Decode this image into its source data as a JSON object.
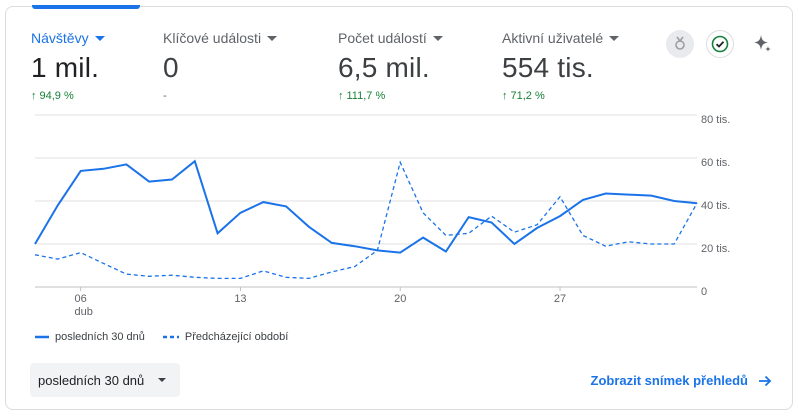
{
  "metrics": [
    {
      "label": "Návštěvy",
      "value": "1 mil.",
      "change": "94,9 %",
      "trend": "up"
    },
    {
      "label": "Klíčové události",
      "value": "0",
      "change": "-",
      "trend": "none"
    },
    {
      "label": "Počet událostí",
      "value": "6,5 mil.",
      "change": "111,7 %",
      "trend": "up"
    },
    {
      "label": "Aktivní uživatelé",
      "value": "554 tis.",
      "change": "71,2 %",
      "trend": "up"
    }
  ],
  "icons": {
    "insights": "insights-badge-icon",
    "check": "check-circle-icon",
    "sparkle": "sparkle-icon"
  },
  "colors": {
    "accent": "#1a73e8",
    "positive": "#188038",
    "grid": "#e0e0e0"
  },
  "legend": {
    "current": "posledních 30 dnů",
    "previous": "Předcházející období"
  },
  "date_range": {
    "selected": "posledních 30 dnů"
  },
  "footer": {
    "link": "Zobrazit snímek přehledů"
  },
  "chart_data": {
    "type": "line",
    "y_ticks": [
      "80 tis.",
      "60 tis.",
      "40 tis.",
      "20 tis.",
      "0"
    ],
    "ylim": [
      0,
      80000
    ],
    "x_ticks": [
      {
        "index": 2,
        "label": "06",
        "sub": "dub"
      },
      {
        "index": 9,
        "label": "13"
      },
      {
        "index": 16,
        "label": "20"
      },
      {
        "index": 23,
        "label": "27"
      }
    ],
    "series": [
      {
        "name": "posledních 30 dnů",
        "style": "solid",
        "values": [
          20000,
          38000,
          54000,
          55000,
          57000,
          49000,
          50000,
          58500,
          25000,
          34500,
          39500,
          37500,
          28000,
          20500,
          19000,
          17000,
          16000,
          23000,
          16500,
          32500,
          30000,
          20000,
          27500,
          33000,
          40500,
          43500,
          43000,
          42500,
          40000,
          39000
        ]
      },
      {
        "name": "Předcházející období",
        "style": "dashed",
        "values": [
          15000,
          13000,
          16000,
          11000,
          6000,
          5000,
          5500,
          4500,
          4000,
          4000,
          7500,
          4500,
          4000,
          7000,
          9500,
          17000,
          58000,
          34500,
          24000,
          25000,
          33000,
          25500,
          29000,
          42000,
          24000,
          19000,
          21000,
          20000,
          20000,
          39000
        ]
      }
    ]
  }
}
